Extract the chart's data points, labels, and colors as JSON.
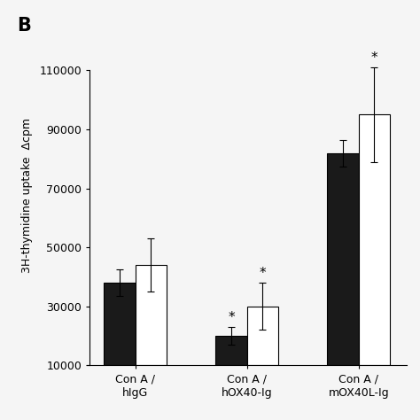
{
  "groups": [
    "Con A /\nhIgG",
    "Con A /\nhOX40-Ig",
    "Con A /\nmOX40L-Ig"
  ],
  "black_values": [
    38000,
    20000,
    82000
  ],
  "white_values": [
    44000,
    30000,
    95000
  ],
  "black_errors": [
    4500,
    3000,
    4500
  ],
  "white_errors": [
    9000,
    8000,
    16000
  ],
  "black_asterisks": [
    false,
    true,
    false
  ],
  "white_asterisks": [
    false,
    true,
    true
  ],
  "ylabel": "3H-thymidine uptake  Δcpm",
  "panel_label": "B",
  "yticks": [
    10000,
    30000,
    50000,
    70000,
    90000,
    110000
  ],
  "ymin": 10000,
  "ymax": 125000,
  "bar_width": 0.28,
  "background_color": "#f5f5f5",
  "black_color": "#1a1a1a",
  "white_color": "#ffffff",
  "edge_color": "#000000",
  "fontsize_ticks": 9,
  "fontsize_ylabel": 9,
  "fontsize_xticks": 9,
  "fontsize_asterisk": 11,
  "fontsize_panel": 15
}
